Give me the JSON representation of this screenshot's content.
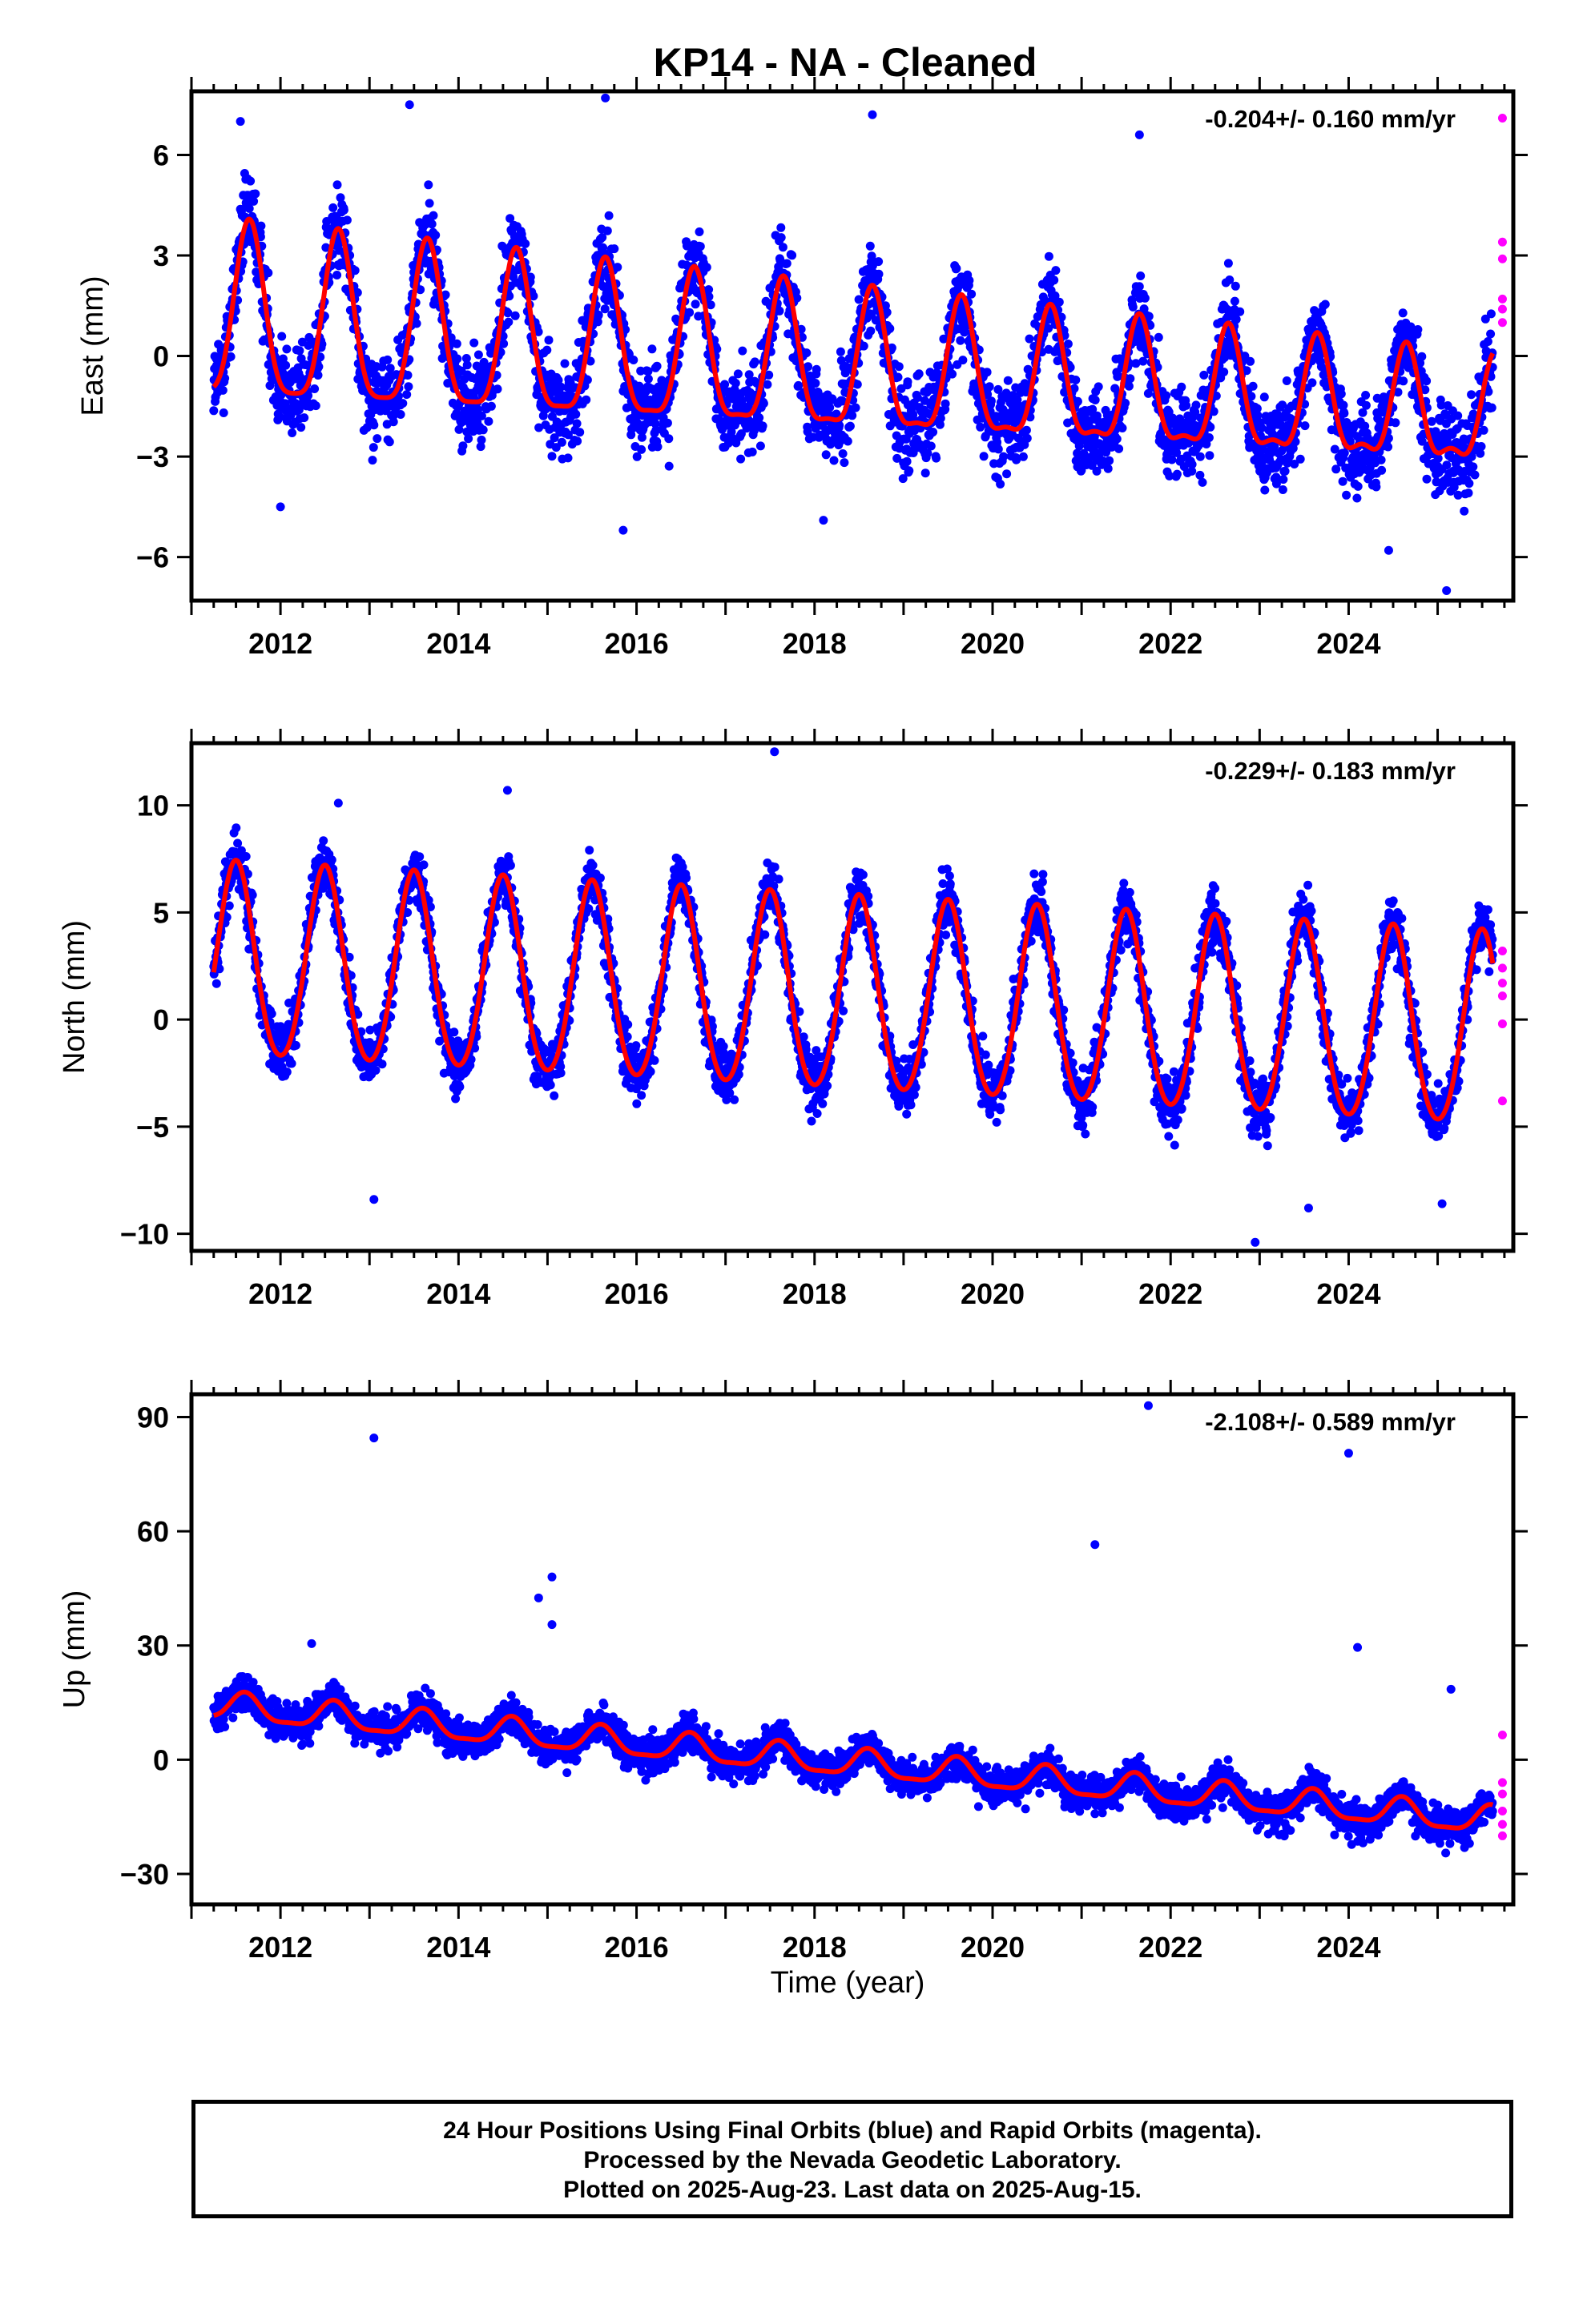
{
  "title": "KP14  - NA - Cleaned",
  "xlabel": "Time (year)",
  "footer": {
    "line1": "24 Hour Positions Using Final Orbits (blue) and Rapid Orbits (magenta).",
    "line2": "Processed by the Nevada Geodetic Laboratory.",
    "line3": "Plotted on 2025-Aug-23. Last data on 2025-Aug-15."
  },
  "colors": {
    "final_orbits": "#0000ff",
    "rapid_orbits": "#ff00ff",
    "model": "#ff0000",
    "frame": "#000000"
  },
  "chart_data": [
    {
      "type": "scatter",
      "component": "east",
      "ylabel": "East (mm)",
      "rate": "-0.204+/- 0.160 mm/yr",
      "xlim": [
        2011.0,
        2025.85
      ],
      "ylim": [
        -7.3,
        7.9
      ],
      "xticks": [
        2012,
        2014,
        2016,
        2018,
        2020,
        2022,
        2024
      ],
      "yticks": [
        -6,
        -3,
        0,
        3,
        6
      ],
      "ytick_labels": [
        "−6",
        "−3",
        "0",
        "3",
        "6"
      ],
      "data_start": 2011.25,
      "data_end": 2025.62,
      "model": {
        "offset": 1.0,
        "trend": -0.204,
        "annual_amp": 2.6,
        "annual_peak": 0.65,
        "semiannual_amp": 0.6,
        "annual_amp_decay": 0.03
      },
      "scatter_sd": 1.3,
      "outliers": [
        [
          2011.55,
          7.0
        ],
        [
          2013.45,
          7.5
        ],
        [
          2015.65,
          7.7
        ],
        [
          2018.65,
          7.2
        ],
        [
          2021.65,
          6.6
        ],
        [
          2012.0,
          -4.5
        ],
        [
          2015.85,
          -5.2
        ],
        [
          2024.45,
          -5.8
        ],
        [
          2025.1,
          -7.0
        ],
        [
          2018.1,
          -4.9
        ]
      ],
      "rapid_points": [
        [
          2025.62,
          7.1
        ],
        [
          2025.62,
          3.4
        ],
        [
          2025.62,
          2.9
        ],
        [
          2025.62,
          1.7
        ],
        [
          2025.62,
          1.4
        ],
        [
          2025.62,
          1.0
        ]
      ]
    },
    {
      "type": "scatter",
      "component": "north",
      "ylabel": "North (mm)",
      "rate": "-0.229+/- 0.183 mm/yr",
      "xlim": [
        2011.0,
        2025.85
      ],
      "ylim": [
        -10.8,
        12.9
      ],
      "xticks": [
        2012,
        2014,
        2016,
        2018,
        2020,
        2022,
        2024
      ],
      "yticks": [
        -10,
        -5,
        0,
        5,
        10
      ],
      "ytick_labels": [
        "−10",
        "−5",
        "0",
        "5",
        "10"
      ],
      "data_start": 2011.25,
      "data_end": 2025.62,
      "model": {
        "offset": 2.6,
        "trend": -0.229,
        "annual_amp": 4.5,
        "annual_peak": 0.5,
        "semiannual_amp": 0.4,
        "annual_amp_decay": 0.0
      },
      "scatter_sd": 1.3,
      "outliers": [
        [
          2017.55,
          12.5
        ],
        [
          2012.65,
          10.1
        ],
        [
          2014.55,
          10.7
        ],
        [
          2013.05,
          -8.4
        ],
        [
          2022.95,
          -10.4
        ],
        [
          2023.55,
          -8.8
        ],
        [
          2025.05,
          -8.6
        ]
      ],
      "rapid_points": [
        [
          2025.62,
          3.2
        ],
        [
          2025.62,
          2.4
        ],
        [
          2025.62,
          1.7
        ],
        [
          2025.62,
          1.1
        ],
        [
          2025.62,
          -0.2
        ],
        [
          2025.62,
          -3.8
        ]
      ]
    },
    {
      "type": "scatter",
      "component": "up",
      "ylabel": "Up (mm)",
      "rate": "-2.108+/- 0.589 mm/yr",
      "xlim": [
        2011.0,
        2025.85
      ],
      "ylim": [
        -38,
        96
      ],
      "xticks": [
        2012,
        2014,
        2016,
        2018,
        2020,
        2022,
        2024
      ],
      "yticks": [
        -30,
        0,
        30,
        60,
        90
      ],
      "ytick_labels": [
        "−30",
        "0",
        "30",
        "60",
        "90"
      ],
      "data_start": 2011.25,
      "data_end": 2025.62,
      "model": {
        "offset": 14.0,
        "trend": -2.108,
        "annual_amp": 3.5,
        "annual_peak": 0.6,
        "semiannual_amp": 1.0,
        "annual_amp_decay": 0.0
      },
      "scatter_sd": 4.5,
      "outliers": [
        [
          2013.05,
          84.5
        ],
        [
          2014.9,
          42.5
        ],
        [
          2015.05,
          48.0
        ],
        [
          2015.05,
          35.5
        ],
        [
          2012.35,
          30.5
        ],
        [
          2021.15,
          56.5
        ],
        [
          2021.75,
          93.0
        ],
        [
          2024.0,
          80.5
        ],
        [
          2024.1,
          29.5
        ],
        [
          2025.15,
          18.5
        ]
      ],
      "rapid_points": [
        [
          2025.62,
          6.5
        ],
        [
          2025.62,
          -6.0
        ],
        [
          2025.62,
          -9.0
        ],
        [
          2025.62,
          -13.5
        ],
        [
          2025.62,
          -17.0
        ],
        [
          2025.62,
          -20.0
        ]
      ]
    }
  ]
}
